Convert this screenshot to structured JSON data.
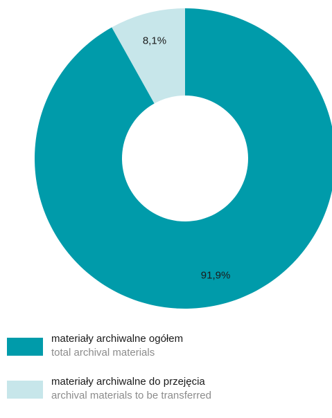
{
  "chart_data": {
    "type": "pie",
    "donut": true,
    "start_angle_deg": 0,
    "direction": "clockwise",
    "categories": [
      "materiały archiwalne ogółem / total archival materials",
      "materiały archiwalne do przejęcia / archival materials to be transferred"
    ],
    "values": [
      91.9,
      8.1
    ],
    "value_labels": [
      "91,9%",
      "8,1%"
    ],
    "colors": [
      "#009baa",
      "#c7e6ea"
    ],
    "title": "",
    "legend_position": "bottom"
  },
  "legend": {
    "items": [
      {
        "label_pl": "materiały archiwalne ogółem",
        "label_en": "total archival materials",
        "color": "#009baa"
      },
      {
        "label_pl": "materiały archiwalne do przejęcia",
        "label_en": "archival materials to be transferred",
        "color": "#c7e6ea"
      }
    ]
  }
}
